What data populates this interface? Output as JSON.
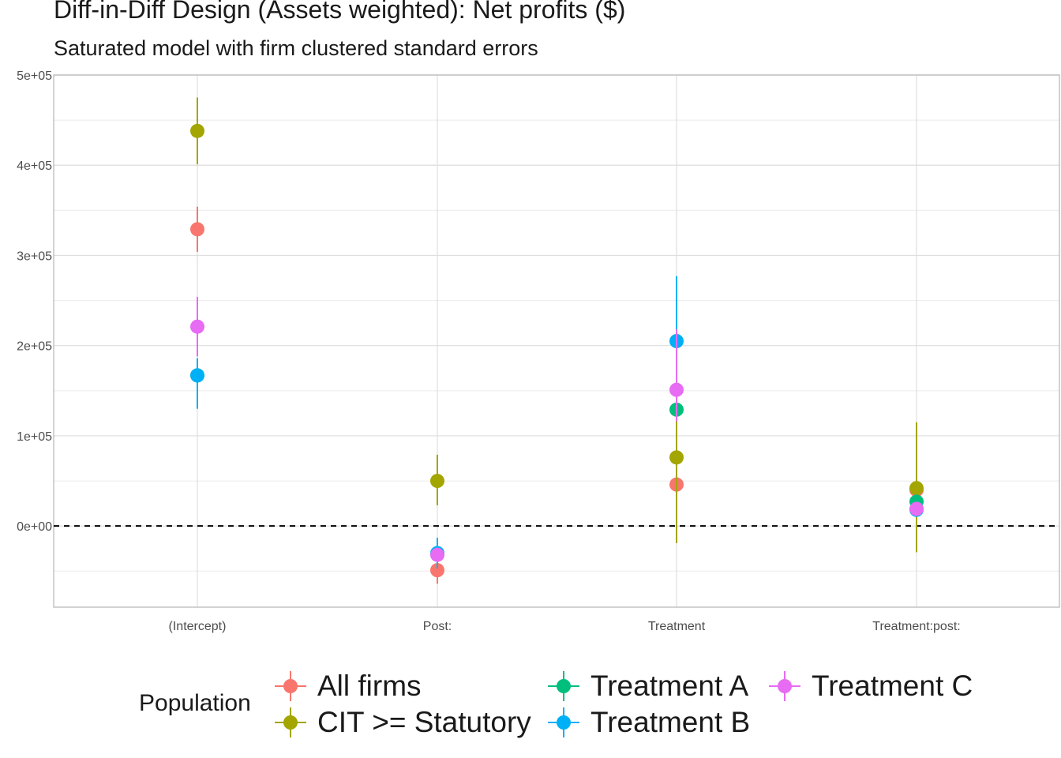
{
  "title": "Diff-in-Diff Design (Assets weighted): Net profits  ($)",
  "subtitle": "Saturated model with firm clustered standard errors",
  "chart_data": {
    "type": "scatter",
    "title": "Diff-in-Diff Design (Assets weighted): Net profits  ($)",
    "subtitle": "Saturated model with firm clustered standard errors",
    "xlabel": "",
    "ylabel": "",
    "categories": [
      "(Intercept)",
      "Post:",
      "Treatment",
      "Treatment:post:"
    ],
    "y_ticks": [
      0,
      100000,
      200000,
      300000,
      400000,
      500000
    ],
    "y_tick_labels": [
      "0e+00",
      "1e+05",
      "2e+05",
      "3e+05",
      "4e+05",
      "5e+05"
    ],
    "ylim": [
      -90000,
      500000
    ],
    "reference_line": {
      "y": 0,
      "style": "dashed"
    },
    "grid": true,
    "legend_title": "Population",
    "legend_position": "bottom",
    "series": [
      {
        "name": "All firms",
        "color": "#F8766D",
        "values": [
          329000,
          -49000,
          46000,
          40000
        ],
        "lower": [
          304000,
          -64000,
          46000,
          40000
        ],
        "upper": [
          354000,
          -34000,
          46000,
          40000
        ]
      },
      {
        "name": "CIT >= Statutory",
        "color": "#A3A500",
        "values": [
          438000,
          50000,
          76000,
          42000
        ],
        "lower": [
          401000,
          23000,
          -19000,
          -29000
        ],
        "upper": [
          475000,
          79000,
          170000,
          115000
        ]
      },
      {
        "name": "Treatment A",
        "color": "#00BF7D",
        "values": [
          167000,
          -31000,
          129000,
          27000
        ],
        "lower": [
          167000,
          -31000,
          129000,
          27000
        ],
        "upper": [
          167000,
          -31000,
          129000,
          27000
        ]
      },
      {
        "name": "Treatment B",
        "color": "#00B0F6",
        "values": [
          167000,
          -30000,
          205000,
          18000
        ],
        "lower": [
          130000,
          -47000,
          139000,
          18000
        ],
        "upper": [
          186000,
          -13000,
          277000,
          18000
        ]
      },
      {
        "name": "Treatment C",
        "color": "#E76BF3",
        "values": [
          221000,
          -32000,
          151000,
          19000
        ],
        "lower": [
          188000,
          -40000,
          116000,
          19000
        ],
        "upper": [
          254000,
          -24000,
          218000,
          19000
        ]
      }
    ]
  },
  "legend": {
    "title": "Population",
    "items": [
      {
        "label": "All firms",
        "color": "#F8766D"
      },
      {
        "label": "CIT >= Statutory",
        "color": "#A3A500"
      },
      {
        "label": "Treatment A",
        "color": "#00BF7D"
      },
      {
        "label": "Treatment B",
        "color": "#00B0F6"
      },
      {
        "label": "Treatment C",
        "color": "#E76BF3"
      }
    ]
  }
}
